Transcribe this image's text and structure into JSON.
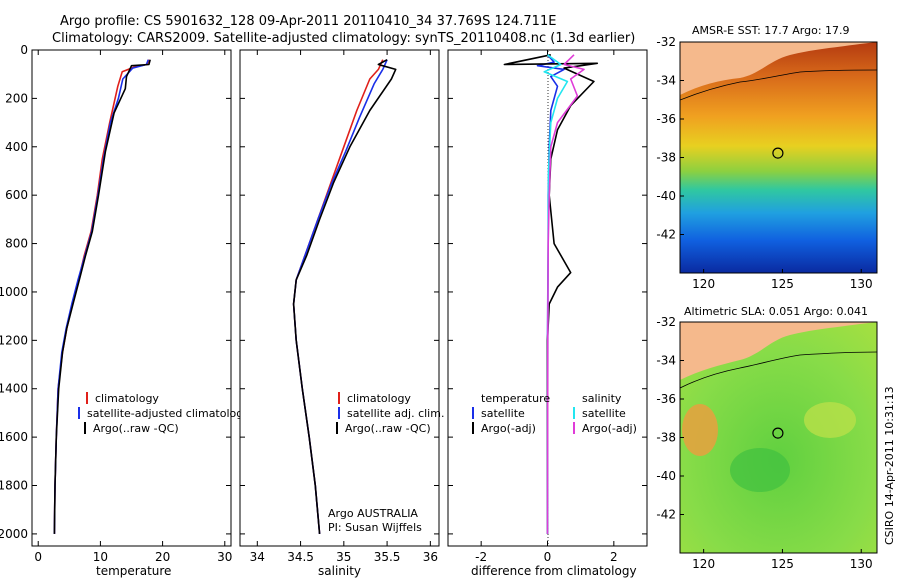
{
  "header": {
    "line1": "Argo profile: CS 5901632_128 09-Apr-2011 20110410_34 37.769S 124.711E",
    "line2": "Climatology: CARS2009. Satellite-adjusted climatology: synTS_20110408.nc (1.3d earlier)"
  },
  "side_label": "CSIRO 14-Apr-2011 10:31:13",
  "colors": {
    "climatology": "#e0201a",
    "satellite": "#1a2fe8",
    "argo": "#000000",
    "salinity_sat": "#22e6f0",
    "salinity_argo": "#e03cd8",
    "land": "#f5b98c"
  },
  "chart_data": [
    {
      "type": "line",
      "name": "temperature-panel",
      "xlabel": "temperature",
      "ylabel": "",
      "xlim": [
        -1,
        31
      ],
      "ylim": [
        2050,
        0
      ],
      "xticks": [
        "0",
        "10",
        "20",
        "30"
      ],
      "yticks": [
        "0",
        "200",
        "400",
        "600",
        "800",
        "1000",
        "1200",
        "1400",
        "1600",
        "1800",
        "2000"
      ],
      "legend": [
        "climatology",
        "satellite-adjusted climatology",
        "Argo(..raw -QC)"
      ],
      "series": [
        {
          "name": "climatology",
          "color": "#e0201a",
          "points": [
            [
              17.8,
              40
            ],
            [
              17.5,
              60
            ],
            [
              15.5,
              70
            ],
            [
              13.5,
              90
            ],
            [
              12.8,
              150
            ],
            [
              11.5,
              300
            ],
            [
              10.3,
              450
            ],
            [
              9.5,
              600
            ],
            [
              8.5,
              750
            ],
            [
              7.4,
              850
            ],
            [
              6.5,
              950
            ],
            [
              5.5,
              1050
            ],
            [
              4.6,
              1150
            ],
            [
              3.9,
              1250
            ],
            [
              3.2,
              1400
            ],
            [
              2.9,
              1600
            ],
            [
              2.7,
              1800
            ],
            [
              2.6,
              2000
            ]
          ]
        },
        {
          "name": "satellite-adjusted climatology",
          "color": "#1a2fe8",
          "points": [
            [
              17.7,
              40
            ],
            [
              17.4,
              60
            ],
            [
              15.2,
              75
            ],
            [
              13.6,
              120
            ],
            [
              12.9,
              200
            ],
            [
              11.6,
              300
            ],
            [
              10.5,
              450
            ],
            [
              9.6,
              600
            ],
            [
              8.6,
              750
            ],
            [
              7.5,
              850
            ],
            [
              6.4,
              950
            ],
            [
              5.4,
              1050
            ],
            [
              4.5,
              1150
            ],
            [
              3.8,
              1250
            ],
            [
              3.2,
              1400
            ],
            [
              2.9,
              1600
            ],
            [
              2.7,
              1800
            ],
            [
              2.6,
              2000
            ]
          ]
        },
        {
          "name": "Argo(..raw -QC)",
          "color": "#000000",
          "points": [
            [
              18.0,
              40
            ],
            [
              17.8,
              60
            ],
            [
              15.0,
              65
            ],
            [
              14.2,
              110
            ],
            [
              14.0,
              160
            ],
            [
              12.2,
              260
            ],
            [
              10.8,
              420
            ],
            [
              9.7,
              600
            ],
            [
              8.7,
              750
            ],
            [
              7.6,
              850
            ],
            [
              6.6,
              950
            ],
            [
              5.6,
              1050
            ],
            [
              4.6,
              1150
            ],
            [
              3.9,
              1250
            ],
            [
              3.3,
              1400
            ],
            [
              2.9,
              1600
            ],
            [
              2.7,
              1800
            ],
            [
              2.6,
              2000
            ]
          ]
        }
      ]
    },
    {
      "type": "line",
      "name": "salinity-panel",
      "xlabel": "salinity",
      "ylabel": "",
      "xlim": [
        33.8,
        36.1
      ],
      "ylim": [
        2050,
        0
      ],
      "xticks": [
        "34",
        "34.5",
        "35",
        "35.5",
        "36"
      ],
      "legend": [
        "climatology",
        "satellite adj. clim.",
        "Argo(..raw -QC)"
      ],
      "annotation": [
        "Argo AUSTRALIA",
        "PI: Susan Wijffels"
      ],
      "series": [
        {
          "name": "climatology",
          "color": "#e0201a",
          "points": [
            [
              35.45,
              40
            ],
            [
              35.4,
              80
            ],
            [
              35.3,
              120
            ],
            [
              35.15,
              250
            ],
            [
              35.0,
              400
            ],
            [
              34.85,
              550
            ],
            [
              34.7,
              700
            ],
            [
              34.55,
              850
            ],
            [
              34.45,
              950
            ],
            [
              34.42,
              1050
            ],
            [
              34.45,
              1200
            ],
            [
              34.52,
              1400
            ],
            [
              34.6,
              1600
            ],
            [
              34.67,
              1800
            ],
            [
              34.72,
              2000
            ]
          ]
        },
        {
          "name": "satellite adj. clim.",
          "color": "#1a2fe8",
          "points": [
            [
              35.5,
              40
            ],
            [
              35.45,
              80
            ],
            [
              35.35,
              140
            ],
            [
              35.18,
              280
            ],
            [
              35.02,
              420
            ],
            [
              34.85,
              560
            ],
            [
              34.7,
              700
            ],
            [
              34.55,
              850
            ],
            [
              34.45,
              950
            ],
            [
              34.42,
              1050
            ],
            [
              34.45,
              1200
            ],
            [
              34.52,
              1400
            ],
            [
              34.6,
              1600
            ],
            [
              34.67,
              1800
            ],
            [
              34.72,
              2000
            ]
          ]
        },
        {
          "name": "Argo(..raw -QC)",
          "color": "#000000",
          "points": [
            [
              35.5,
              40
            ],
            [
              35.4,
              60
            ],
            [
              35.6,
              80
            ],
            [
              35.55,
              120
            ],
            [
              35.3,
              250
            ],
            [
              35.07,
              400
            ],
            [
              34.88,
              550
            ],
            [
              34.72,
              700
            ],
            [
              34.57,
              850
            ],
            [
              34.45,
              950
            ],
            [
              34.42,
              1050
            ],
            [
              34.45,
              1200
            ],
            [
              34.52,
              1400
            ],
            [
              34.6,
              1600
            ],
            [
              34.67,
              1800
            ],
            [
              34.72,
              2000
            ]
          ]
        }
      ]
    },
    {
      "type": "line",
      "name": "difference-panel",
      "xlabel": "difference from climatology",
      "ylabel": "",
      "xlim": [
        -3,
        3
      ],
      "ylim": [
        2050,
        0
      ],
      "xticks": [
        "-2",
        "0",
        "2"
      ],
      "legend": [
        "temperature",
        "satellite",
        "Argo(-adj)",
        "salinity",
        "satellite",
        "Argo(-adj)"
      ],
      "series": [
        {
          "name": "satellite (temperature)",
          "color": "#1a2fe8",
          "points": [
            [
              0,
              20
            ],
            [
              0.2,
              50
            ],
            [
              -0.3,
              65
            ],
            [
              0.5,
              80
            ],
            [
              0.1,
              110
            ],
            [
              0.3,
              150
            ],
            [
              0.1,
              250
            ],
            [
              0.05,
              400
            ],
            [
              0.02,
              600
            ],
            [
              0.02,
              800
            ],
            [
              0.01,
              1000
            ],
            [
              0,
              1200
            ],
            [
              0,
              2000
            ]
          ]
        },
        {
          "name": "Argo(-adj) (temperature)",
          "color": "#000000",
          "points": [
            [
              0.1,
              20
            ],
            [
              -1.3,
              60
            ],
            [
              1.5,
              55
            ],
            [
              0.5,
              75
            ],
            [
              1.4,
              130
            ],
            [
              0.7,
              230
            ],
            [
              0.3,
              330
            ],
            [
              0.1,
              450
            ],
            [
              0.05,
              600
            ],
            [
              0.2,
              800
            ],
            [
              0.7,
              920
            ],
            [
              0.3,
              980
            ],
            [
              0.05,
              1050
            ],
            [
              0,
              1200
            ],
            [
              0,
              2000
            ]
          ]
        },
        {
          "name": "satellite (salinity)",
          "color": "#22e6f0",
          "points": [
            [
              0,
              20
            ],
            [
              0.4,
              60
            ],
            [
              -0.1,
              90
            ],
            [
              0.6,
              130
            ],
            [
              0.3,
              200
            ],
            [
              0.1,
              300
            ],
            [
              0.03,
              500
            ],
            [
              0.02,
              800
            ],
            [
              0.01,
              1200
            ],
            [
              0,
              2000
            ]
          ]
        },
        {
          "name": "Argo(-adj) (salinity)",
          "color": "#e03cd8",
          "points": [
            [
              0.8,
              20
            ],
            [
              0.5,
              60
            ],
            [
              1.1,
              80
            ],
            [
              0.7,
              120
            ],
            [
              0.9,
              190
            ],
            [
              0.3,
              300
            ],
            [
              0.1,
              400
            ],
            [
              0.05,
              600
            ],
            [
              0.02,
              800
            ],
            [
              0.01,
              1200
            ],
            [
              0,
              2000
            ]
          ]
        }
      ]
    },
    {
      "type": "heatmap",
      "name": "sst-map",
      "title": "AMSR-E SST: 17.7 Argo: 17.9",
      "xlim": [
        118.5,
        131
      ],
      "ylim": [
        -44,
        -32
      ],
      "xticks": [
        "120",
        "125",
        "130"
      ],
      "yticks": [
        "-32",
        "-34",
        "-36",
        "-38",
        "-40",
        "-42"
      ],
      "marker": {
        "lon": 124.711,
        "lat": -37.769
      }
    },
    {
      "type": "heatmap",
      "name": "sla-map",
      "title": "Altimetric SLA: 0.051 Argo: 0.041",
      "xlim": [
        118.5,
        131
      ],
      "ylim": [
        -44,
        -32
      ],
      "xticks": [
        "120",
        "125",
        "130"
      ],
      "yticks": [
        "-32",
        "-34",
        "-36",
        "-38",
        "-40",
        "-42"
      ],
      "marker": {
        "lon": 124.711,
        "lat": -37.769
      }
    }
  ]
}
